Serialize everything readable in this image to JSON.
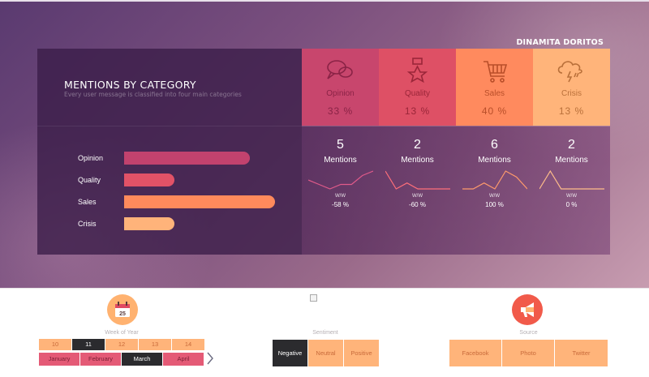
{
  "brand": "DINAMITA DORITOS",
  "mentions": {
    "title": "MENTIONS BY CATEGORY",
    "subtitle": "Every user message is classified into four main categories",
    "bars": [
      {
        "label": "Opinion",
        "value": 5,
        "color": "#c2426e"
      },
      {
        "label": "Quality",
        "value": 2,
        "color": "#e25267"
      },
      {
        "label": "Sales",
        "value": 6,
        "color": "#ff8a5c"
      },
      {
        "label": "Crisis",
        "value": 2,
        "color": "#ffb37a"
      }
    ],
    "max_value": 6
  },
  "tiles": [
    {
      "name": "Opinion",
      "pct": "33 %",
      "icon": "speech-bubble-icon",
      "bg": "#c8466d",
      "fg": "#8a2346"
    },
    {
      "name": "Quality",
      "pct": "13 %",
      "icon": "medal-icon",
      "bg": "#de5065",
      "fg": "#9a2639"
    },
    {
      "name": "Sales",
      "pct": "40 %",
      "icon": "shopping-cart-icon",
      "bg": "#ff8a5e",
      "fg": "#b84e29"
    },
    {
      "name": "Crisis",
      "pct": "13 %",
      "icon": "storm-cloud-icon",
      "bg": "#ffb47a",
      "fg": "#b9703a"
    }
  ],
  "stats": [
    {
      "count": "5",
      "label": "Mentions",
      "ww": "W/W",
      "change": "-58 %",
      "trend": [
        4,
        3,
        2,
        3,
        3,
        5,
        6
      ],
      "color": "#e05a8a"
    },
    {
      "count": "2",
      "label": "Mentions",
      "ww": "W/W",
      "change": "-60 %",
      "trend": [
        5,
        2,
        3,
        2,
        2,
        2,
        2
      ],
      "color": "#ff6f7a"
    },
    {
      "count": "6",
      "label": "Mentions",
      "ww": "W/W",
      "change": "100 %",
      "trend": [
        1,
        1,
        2,
        1,
        4,
        3,
        1
      ],
      "color": "#ff9a6c"
    },
    {
      "count": "2",
      "label": "Mentions",
      "ww": "W/W",
      "change": "0 %",
      "trend": [
        1,
        4,
        1,
        1,
        1,
        1,
        1
      ],
      "color": "#ffbe8a"
    }
  ],
  "slicers": {
    "week": {
      "title": "Week of Year",
      "weeks": [
        "10",
        "11",
        "12",
        "13",
        "14"
      ],
      "selected_week": "11",
      "months": [
        "January",
        "February",
        "March",
        "April"
      ],
      "selected_month": "March",
      "calendar_day": "25"
    },
    "sentiment": {
      "title": "Sentiment",
      "options": [
        "Negative",
        "Neutral",
        "Positive"
      ],
      "selected": "Negative"
    },
    "source": {
      "title": "Source",
      "options": [
        "Facebook",
        "Photo",
        "Twitter"
      ]
    }
  }
}
